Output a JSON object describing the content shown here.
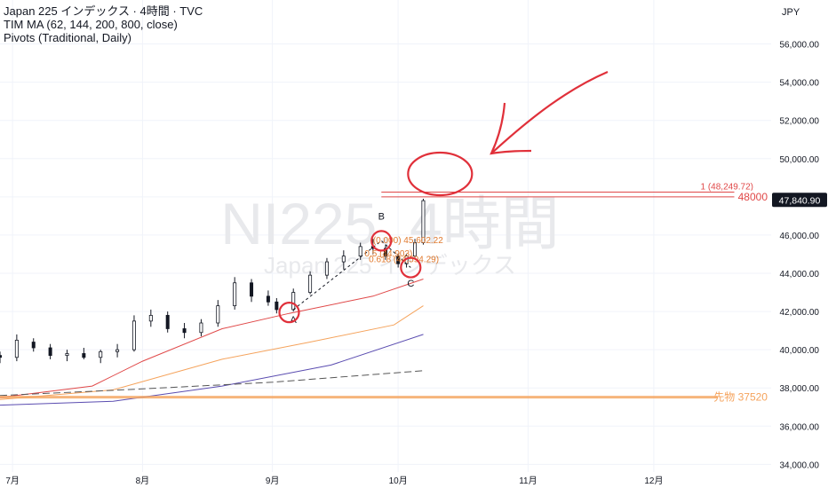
{
  "legend": {
    "line1": "Japan 225 インデックス · 4時間 · TVC",
    "line2": "TIM MA (62, 144, 200, 800, close)",
    "line3": "Pivots (Traditional, Daily)"
  },
  "currency": "JPY",
  "watermark": {
    "main": "NI225, 4時間",
    "sub": "Japan 225 インデックス"
  },
  "chart_data": {
    "type": "candlestick",
    "yaxis": {
      "ticks": [
        56000,
        54000,
        52000,
        50000,
        48000,
        46000,
        44000,
        42000,
        40000,
        38000,
        36000,
        34000
      ],
      "tick_labels": [
        "56,000.00",
        "54,000.00",
        "52,000.00",
        "50,000.00",
        "48,000.00",
        "46,000.00",
        "44,000.00",
        "42,000.00",
        "40,000.00",
        "38,000.00",
        "36,000.00",
        "34,000.00"
      ],
      "range": [
        33600,
        58300
      ]
    },
    "xaxis": {
      "labels": [
        "7月",
        "8月",
        "9月",
        "10月",
        "11月",
        "12月"
      ],
      "dates": [
        "2025-07-01",
        "2025-08-01",
        "2025-09-01",
        "2025-10-01",
        "2025-11-01",
        "2025-12-01"
      ],
      "range": [
        "2025-06-28",
        "2025-12-29"
      ]
    },
    "candles": [
      [
        "2025-06-28",
        39700,
        39900,
        39300,
        39600
      ],
      [
        "2025-07-02",
        39600,
        40800,
        39400,
        40500
      ],
      [
        "2025-07-06",
        40400,
        40600,
        39900,
        40100
      ],
      [
        "2025-07-10",
        40100,
        40300,
        39500,
        39700
      ],
      [
        "2025-07-14",
        39700,
        40000,
        39400,
        39800
      ],
      [
        "2025-07-18",
        39800,
        40100,
        39500,
        39600
      ],
      [
        "2025-07-22",
        39600,
        40000,
        39300,
        39900
      ],
      [
        "2025-07-26",
        39900,
        40300,
        39600,
        40000
      ],
      [
        "2025-07-30",
        40000,
        41800,
        39900,
        41500
      ],
      [
        "2025-08-03",
        41500,
        42100,
        41200,
        41800
      ],
      [
        "2025-08-07",
        41800,
        42000,
        40900,
        41100
      ],
      [
        "2025-08-11",
        41100,
        41400,
        40600,
        40900
      ],
      [
        "2025-08-15",
        40900,
        41600,
        40700,
        41400
      ],
      [
        "2025-08-19",
        41400,
        42600,
        41200,
        42300
      ],
      [
        "2025-08-23",
        42300,
        43800,
        42100,
        43500
      ],
      [
        "2025-08-27",
        43500,
        43700,
        42500,
        42800
      ],
      [
        "2025-08-31",
        42800,
        43100,
        42300,
        42500
      ],
      [
        "2025-09-02",
        42500,
        42700,
        41900,
        42100
      ],
      [
        "2025-09-06",
        42100,
        43200,
        42000,
        43000
      ],
      [
        "2025-09-10",
        43000,
        44100,
        42900,
        43900
      ],
      [
        "2025-09-14",
        43900,
        44800,
        43700,
        44600
      ],
      [
        "2025-09-18",
        44600,
        45200,
        44200,
        44900
      ],
      [
        "2025-09-22",
        44900,
        45600,
        44700,
        45400
      ],
      [
        "2025-09-25",
        45400,
        45800,
        45000,
        45300
      ],
      [
        "2025-09-28",
        45300,
        45500,
        44700,
        44900
      ],
      [
        "2025-10-01",
        44900,
        45000,
        44300,
        44500
      ],
      [
        "2025-10-03",
        44500,
        45000,
        44300,
        44900
      ],
      [
        "2025-10-05",
        44900,
        45800,
        44800,
        45600
      ],
      [
        "2025-10-07",
        45600,
        47900,
        45500,
        47800
      ]
    ],
    "ma_lines": [
      {
        "values": [
          [
            "2025-06-28",
            37500
          ],
          [
            "2025-07-20",
            38100
          ],
          [
            "2025-08-01",
            39400
          ],
          [
            "2025-08-20",
            41100
          ],
          [
            "2025-09-05",
            41900
          ],
          [
            "2025-09-25",
            42800
          ],
          [
            "2025-10-07",
            43700
          ]
        ],
        "color": "#e04848"
      },
      {
        "values": [
          [
            "2025-06-28",
            37400
          ],
          [
            "2025-07-25",
            37900
          ],
          [
            "2025-08-20",
            39500
          ],
          [
            "2025-09-10",
            40400
          ],
          [
            "2025-09-30",
            41300
          ],
          [
            "2025-10-07",
            42300
          ]
        ],
        "color": "#f5a35c"
      },
      {
        "values": [
          [
            "2025-06-28",
            37100
          ],
          [
            "2025-07-25",
            37300
          ],
          [
            "2025-08-20",
            38100
          ],
          [
            "2025-09-15",
            39200
          ],
          [
            "2025-10-07",
            40800
          ]
        ],
        "color": "#5a4cb0"
      },
      {
        "values": [
          [
            "2025-06-28",
            37600
          ],
          [
            "2025-08-01",
            37950
          ],
          [
            "2025-09-01",
            38300
          ],
          [
            "2025-10-07",
            38900
          ]
        ],
        "color": "#555555",
        "dashed": true
      }
    ],
    "horizontal_lines": [
      {
        "y": 48249.72,
        "label": "1 (48,249.72)",
        "color": "#e04848",
        "from": "2025-09-27"
      },
      {
        "y": 48000,
        "label": "48000",
        "color": "#e04848",
        "from": "2025-09-27"
      },
      {
        "y": 37520,
        "label": "先物 37520",
        "color": "#f5a35c",
        "from": "2025-06-28",
        "thick": true
      }
    ],
    "last_price": {
      "y": 47840.9,
      "label": "47,840.90"
    },
    "annotations": [
      {
        "text": "A",
        "x": "2025-09-06",
        "y": 41400
      },
      {
        "text": "B",
        "x": "2025-09-27",
        "y": 46800
      },
      {
        "text": "C",
        "x": "2025-10-04",
        "y": 43300
      },
      {
        "text": "(0.000) 45,602.22",
        "x": "2025-09-25",
        "y": 45580
      },
      {
        "text": "0.5 (44,903)",
        "x": "2025-09-23",
        "y": 44880
      },
      {
        "text": "0.618 (44,594.29)",
        "x": "2025-09-24",
        "y": 44580
      }
    ],
    "circles": [
      {
        "x": "2025-09-05",
        "y": 41950
      },
      {
        "x": "2025-09-27",
        "y": 45700
      },
      {
        "x": "2025-10-04",
        "y": 44300
      },
      {
        "x": "2025-10-11",
        "y": 49200
      }
    ]
  }
}
